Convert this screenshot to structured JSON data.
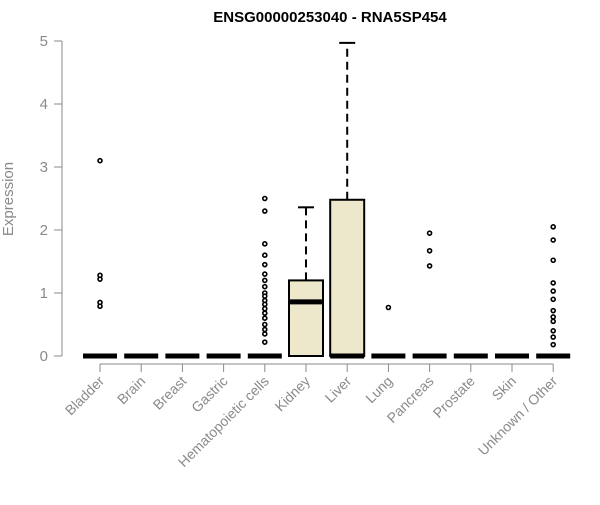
{
  "chart_data": {
    "type": "boxplot",
    "title": "ENSG00000253040 - RNA5SP454",
    "xlabel": "",
    "ylabel": "Expression",
    "ylim": [
      0,
      5
    ],
    "yticks": [
      0,
      1,
      2,
      3,
      4,
      5
    ],
    "colors": {
      "box_fill": "#ede7cc",
      "stroke": "#000000",
      "axis": "#8a8a8a"
    },
    "categories": [
      "Bladder",
      "Brain",
      "Breast",
      "Gastric",
      "Hematopoietic cells",
      "Kidney",
      "Liver",
      "Lung",
      "Pancreas",
      "Prostate",
      "Skin",
      "Unknown / Other"
    ],
    "boxes": [
      {
        "category": "Bladder",
        "q1": 0,
        "median": 0,
        "q3": 0,
        "whisker_low": 0,
        "whisker_high": 0,
        "outliers": [
          3.1,
          1.28,
          1.22,
          0.85,
          0.79
        ]
      },
      {
        "category": "Brain",
        "q1": 0,
        "median": 0,
        "q3": 0,
        "whisker_low": 0,
        "whisker_high": 0,
        "outliers": []
      },
      {
        "category": "Breast",
        "q1": 0,
        "median": 0,
        "q3": 0,
        "whisker_low": 0,
        "whisker_high": 0,
        "outliers": []
      },
      {
        "category": "Gastric",
        "q1": 0,
        "median": 0,
        "q3": 0,
        "whisker_low": 0,
        "whisker_high": 0,
        "outliers": []
      },
      {
        "category": "Hematopoietic cells",
        "q1": 0,
        "median": 0,
        "q3": 0,
        "whisker_low": 0,
        "whisker_high": 0,
        "outliers": [
          2.5,
          2.3,
          1.78,
          1.6,
          1.45,
          1.3,
          1.2,
          1.1,
          1.0,
          0.95,
          0.88,
          0.82,
          0.75,
          0.68,
          0.6,
          0.5,
          0.42,
          0.35,
          0.22
        ]
      },
      {
        "category": "Kidney",
        "q1": 0,
        "median": 0.86,
        "q3": 1.2,
        "whisker_low": 0,
        "whisker_high": 2.36,
        "outliers": []
      },
      {
        "category": "Liver",
        "q1": 0,
        "median": 0,
        "q3": 2.48,
        "whisker_low": 0,
        "whisker_high": 4.97,
        "outliers": []
      },
      {
        "category": "Lung",
        "q1": 0,
        "median": 0,
        "q3": 0,
        "whisker_low": 0,
        "whisker_high": 0,
        "outliers": [
          0.77
        ]
      },
      {
        "category": "Pancreas",
        "q1": 0,
        "median": 0,
        "q3": 0,
        "whisker_low": 0,
        "whisker_high": 0,
        "outliers": [
          1.95,
          1.67,
          1.43
        ]
      },
      {
        "category": "Prostate",
        "q1": 0,
        "median": 0,
        "q3": 0,
        "whisker_low": 0,
        "whisker_high": 0,
        "outliers": []
      },
      {
        "category": "Skin",
        "q1": 0,
        "median": 0,
        "q3": 0,
        "whisker_low": 0,
        "whisker_high": 0,
        "outliers": []
      },
      {
        "category": "Unknown / Other",
        "q1": 0,
        "median": 0,
        "q3": 0,
        "whisker_low": 0,
        "whisker_high": 0,
        "outliers": [
          2.05,
          1.84,
          1.52,
          1.16,
          1.03,
          0.9,
          0.72,
          0.62,
          0.55,
          0.4,
          0.3,
          0.18
        ]
      }
    ],
    "legend": "none",
    "grid": false
  }
}
